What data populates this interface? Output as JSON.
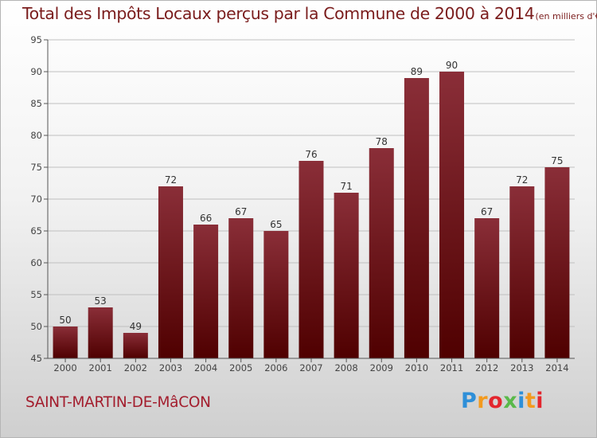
{
  "header": {
    "title": "Total des Impôts Locaux perçus par la Commune de 2000 à 2014",
    "unit": "(en milliers d'€)"
  },
  "footer": {
    "commune": "SAINT-MARTIN-DE-MâCON",
    "brand_letters": [
      "P",
      "r",
      "o",
      "x",
      "i",
      "t",
      "i"
    ]
  },
  "colors": {
    "bar_top": "#8a2e38",
    "bar_bottom": "#4f0000",
    "title": "#7a1c1c",
    "commune": "#a31d2d",
    "axis": "#555555",
    "grid": "#bfbfbf"
  },
  "chart_data": {
    "type": "bar",
    "title": "Total des Impôts Locaux perçus par la Commune de 2000 à 2014",
    "xlabel": "",
    "ylabel": "",
    "categories": [
      "2000",
      "2001",
      "2002",
      "2003",
      "2004",
      "2005",
      "2006",
      "2007",
      "2008",
      "2009",
      "2010",
      "2011",
      "2012",
      "2013",
      "2014"
    ],
    "values": [
      50,
      53,
      49,
      72,
      66,
      67,
      65,
      76,
      71,
      78,
      89,
      90,
      67,
      72,
      75
    ],
    "ylim": [
      45,
      95
    ],
    "yticks": [
      45,
      50,
      55,
      60,
      65,
      70,
      75,
      80,
      85,
      90,
      95
    ],
    "grid": true,
    "data_labels": true
  }
}
